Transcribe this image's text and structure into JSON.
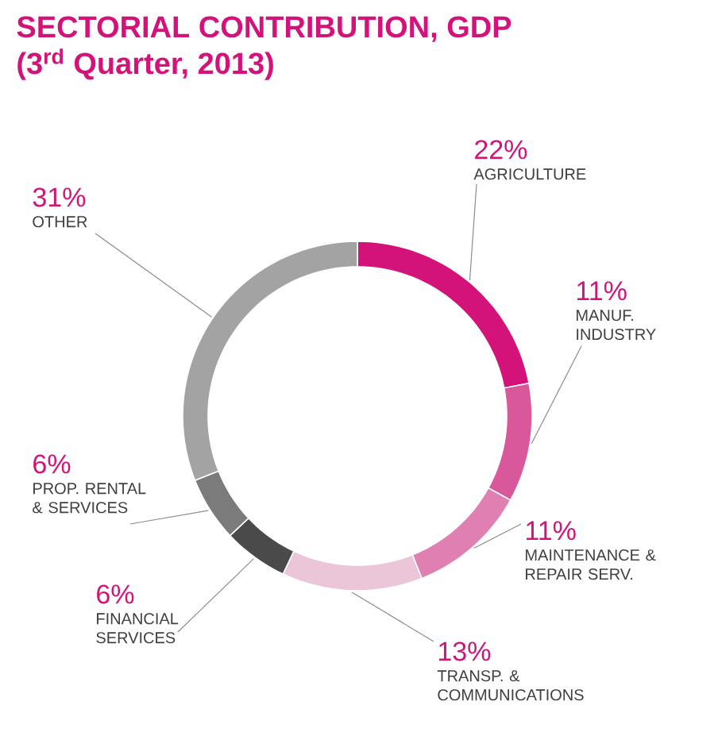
{
  "chart_data": {
    "type": "donut",
    "title": "SECTORIAL CONTRIBUTION, GDP",
    "subtitle": "(3$^{rd}$ Quarter, 2013)",
    "categories": [
      "AGRICULTURE",
      "MANUF. INDUSTRY",
      "MAINTENANCE & REPAIR SERV.",
      "TRANSP. & COMMUNICATIONS",
      "FINANCIAL SERVICES",
      "PROP. RENTAL & SERVICES",
      "OTHER"
    ],
    "values": [
      22,
      11,
      11,
      13,
      6,
      6,
      31
    ],
    "value_labels": [
      "22%",
      "11%",
      "11%",
      "13%",
      "6%",
      "6%",
      "31%"
    ],
    "colors": [
      "#d4137a",
      "#d9579b",
      "#e07fb2",
      "#ebc6d8",
      "#4a4a4a",
      "#7b7b7b",
      "#a3a3a3"
    ]
  }
}
